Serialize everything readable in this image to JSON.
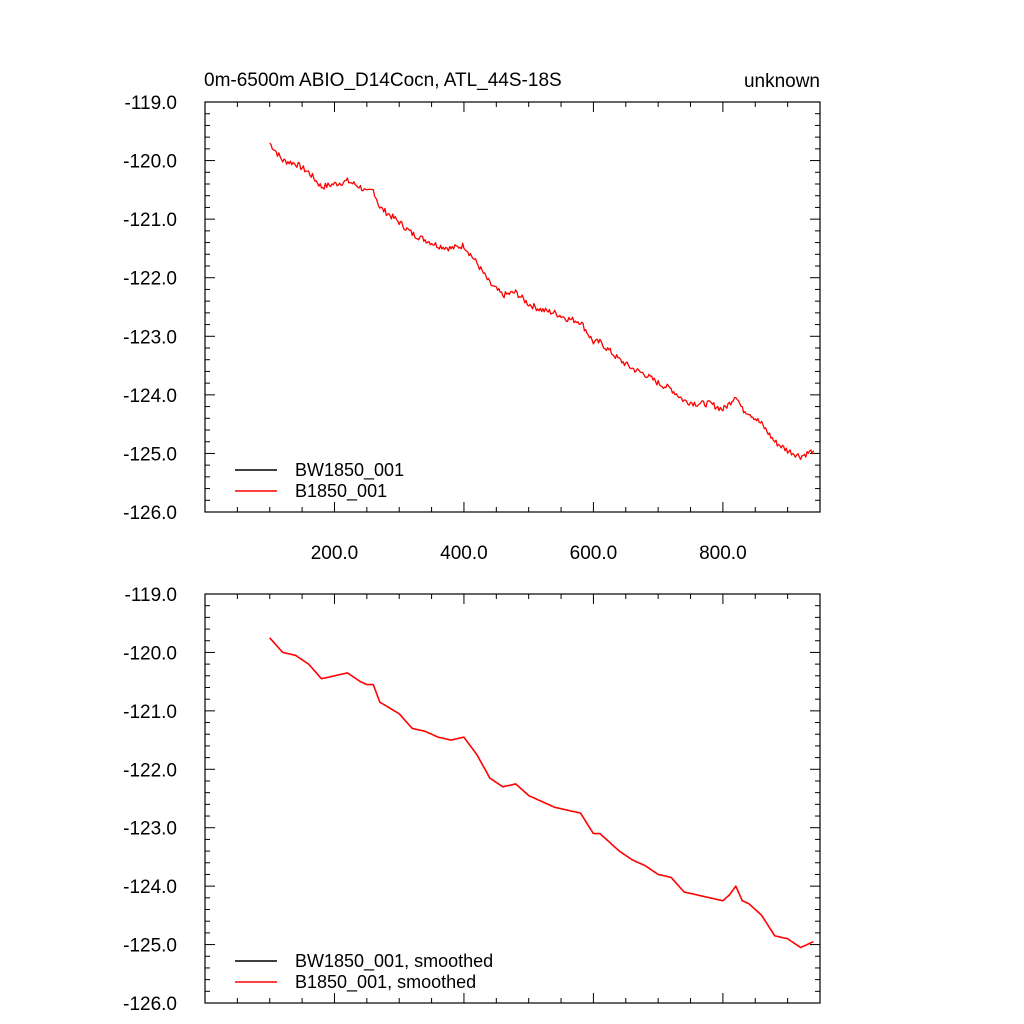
{
  "figure": {
    "title_left": "0m-6500m ABIO_D14Cocn, ATL_44S-18S",
    "title_right": "unknown"
  },
  "colors": {
    "black": "#000000",
    "red": "#ff0000"
  },
  "chart_data": [
    {
      "type": "line",
      "panel": "top",
      "xlim": [
        0,
        950
      ],
      "ylim": [
        -126,
        -119
      ],
      "x_ticks": [
        200,
        400,
        600,
        800
      ],
      "x_tick_labels": [
        "200.0",
        "400.0",
        "600.0",
        "800.0"
      ],
      "y_ticks": [
        -119,
        -120,
        -121,
        -122,
        -123,
        -124,
        -125,
        -126
      ],
      "y_tick_labels": [
        "-119.0",
        "-120.0",
        "-121.0",
        "-122.0",
        "-123.0",
        "-124.0",
        "-125.0",
        "-126.0"
      ],
      "legend": {
        "placement": "bottom-left",
        "entries": [
          {
            "label": "BW1850_001",
            "color": "#000000"
          },
          {
            "label": "B1850_001",
            "color": "#ff0000"
          }
        ]
      },
      "series": [
        {
          "name": "B1850_001",
          "color": "#ff0000",
          "noisy": true,
          "x": [
            100,
            120,
            140,
            160,
            180,
            200,
            220,
            240,
            250,
            260,
            270,
            300,
            320,
            340,
            360,
            380,
            400,
            420,
            440,
            460,
            480,
            500,
            520,
            540,
            560,
            580,
            600,
            610,
            620,
            640,
            660,
            680,
            700,
            720,
            740,
            760,
            780,
            800,
            810,
            820,
            830,
            840,
            860,
            880,
            900,
            920,
            940
          ],
          "y": [
            -119.7,
            -120.0,
            -120.05,
            -120.2,
            -120.45,
            -120.4,
            -120.35,
            -120.45,
            -120.55,
            -120.5,
            -120.8,
            -121.05,
            -121.25,
            -121.35,
            -121.45,
            -121.5,
            -121.45,
            -121.75,
            -122.1,
            -122.3,
            -122.25,
            -122.45,
            -122.55,
            -122.6,
            -122.7,
            -122.75,
            -123.1,
            -123.1,
            -123.2,
            -123.4,
            -123.55,
            -123.65,
            -123.8,
            -123.9,
            -124.1,
            -124.15,
            -124.15,
            -124.25,
            -124.15,
            -124.0,
            -124.25,
            -124.3,
            -124.5,
            -124.8,
            -124.95,
            -125.05,
            -124.95
          ]
        }
      ]
    },
    {
      "type": "line",
      "panel": "bottom",
      "xlim": [
        0,
        950
      ],
      "ylim": [
        -126,
        -119
      ],
      "x_ticks": [
        200,
        400,
        600,
        800
      ],
      "x_tick_labels": [],
      "y_ticks": [
        -119,
        -120,
        -121,
        -122,
        -123,
        -124,
        -125,
        -126
      ],
      "y_tick_labels": [
        "-119.0",
        "-120.0",
        "-121.0",
        "-122.0",
        "-123.0",
        "-124.0",
        "-125.0",
        "-126.0"
      ],
      "legend": {
        "placement": "bottom-left",
        "entries": [
          {
            "label": "BW1850_001, smoothed",
            "color": "#000000"
          },
          {
            "label": "B1850_001, smoothed",
            "color": "#ff0000"
          }
        ]
      },
      "series": [
        {
          "name": "B1850_001, smoothed",
          "color": "#ff0000",
          "noisy": false,
          "x": [
            100,
            120,
            140,
            160,
            180,
            200,
            220,
            240,
            250,
            260,
            270,
            300,
            320,
            340,
            360,
            380,
            400,
            420,
            440,
            460,
            480,
            500,
            520,
            540,
            560,
            580,
            600,
            610,
            620,
            640,
            660,
            680,
            700,
            720,
            740,
            760,
            780,
            800,
            810,
            820,
            830,
            840,
            860,
            880,
            900,
            920,
            940
          ],
          "y": [
            -119.75,
            -120.0,
            -120.05,
            -120.2,
            -120.45,
            -120.4,
            -120.35,
            -120.5,
            -120.55,
            -120.55,
            -120.85,
            -121.05,
            -121.3,
            -121.35,
            -121.45,
            -121.5,
            -121.45,
            -121.75,
            -122.15,
            -122.3,
            -122.25,
            -122.45,
            -122.55,
            -122.65,
            -122.7,
            -122.75,
            -123.1,
            -123.1,
            -123.2,
            -123.4,
            -123.55,
            -123.65,
            -123.8,
            -123.85,
            -124.1,
            -124.15,
            -124.2,
            -124.25,
            -124.15,
            -124.0,
            -124.25,
            -124.3,
            -124.5,
            -124.85,
            -124.9,
            -125.05,
            -124.95
          ]
        }
      ]
    }
  ]
}
